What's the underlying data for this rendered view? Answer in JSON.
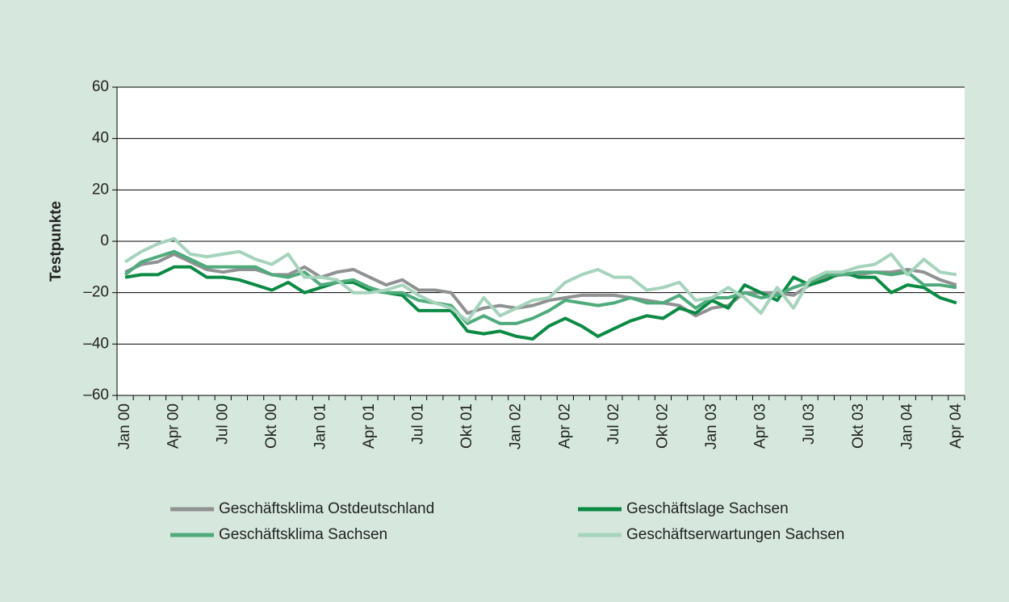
{
  "chart_data": {
    "type": "line",
    "y_label": "Testpunkte",
    "categories": [
      "Jan 00",
      null,
      null,
      "Apr 00",
      null,
      null,
      "Jul 00",
      null,
      null,
      "Okt 00",
      null,
      null,
      "Jan 01",
      null,
      null,
      "Apr 01",
      null,
      null,
      "Jul 01",
      null,
      null,
      "Okt 01",
      null,
      null,
      "Jan 02",
      null,
      null,
      "Apr 02",
      null,
      null,
      "Jul 02",
      null,
      null,
      "Okt 02",
      null,
      null,
      "Jan 03",
      null,
      null,
      "Apr 03",
      null,
      null,
      "Jul 03",
      null,
      null,
      "Okt 03",
      null,
      null,
      "Jan 04",
      null,
      null,
      "Apr 04"
    ],
    "series": [
      {
        "name": "Geschäftsklima Ostdeutschland",
        "color": "#8f9192",
        "values": [
          -12,
          -9,
          -8,
          -5,
          -8,
          -11,
          -12,
          -11,
          -11,
          -13,
          -13,
          -10,
          -14,
          -12,
          -11,
          -14,
          -17,
          -15,
          -19,
          -19,
          -20,
          -28,
          -26,
          -25,
          -26,
          -25,
          -23,
          -22,
          -21,
          -21,
          -21,
          -22,
          -23,
          -24,
          -25,
          -29,
          -26,
          -25,
          -20,
          -20,
          -20,
          -21,
          -17,
          -14,
          -13,
          -13,
          -12,
          -12,
          -11,
          -12,
          -15,
          -17
        ]
      },
      {
        "name": "Geschäftslage Sachsen",
        "color": "#0b8a44",
        "values": [
          -14,
          -13,
          -13,
          -10,
          -10,
          -14,
          -14,
          -15,
          -17,
          -19,
          -16,
          -20,
          -18,
          -16,
          -16,
          -19,
          -20,
          -21,
          -27,
          -27,
          -27,
          -35,
          -36,
          -35,
          -37,
          -38,
          -33,
          -30,
          -33,
          -37,
          -34,
          -31,
          -29,
          -30,
          -26,
          -28,
          -23,
          -26,
          -17,
          -20,
          -23,
          -14,
          -17,
          -15,
          -12,
          -14,
          -14,
          -20,
          -17,
          -18,
          -22,
          -24
        ]
      },
      {
        "name": "Geschäftsklima Sachsen",
        "color": "#4fab7c",
        "values": [
          -13,
          -8,
          -6,
          -4,
          -7,
          -10,
          -10,
          -10,
          -10,
          -13,
          -14,
          -12,
          -17,
          -16,
          -15,
          -18,
          -20,
          -20,
          -23,
          -24,
          -25,
          -32,
          -29,
          -32,
          -32,
          -30,
          -27,
          -23,
          -24,
          -25,
          -24,
          -22,
          -24,
          -24,
          -21,
          -26,
          -22,
          -22,
          -20,
          -22,
          -21,
          -18,
          -16,
          -13,
          -13,
          -12,
          -12,
          -13,
          -12,
          -17,
          -17,
          -18
        ]
      },
      {
        "name": "Geschäftserwartungen Sachsen",
        "color": "#a6d3bb",
        "values": [
          -8,
          -4,
          -1,
          1,
          -5,
          -6,
          -5,
          -4,
          -7,
          -9,
          -5,
          -14,
          -14,
          -15,
          -20,
          -20,
          -19,
          -17,
          -21,
          -24,
          -26,
          -31,
          -22,
          -29,
          -26,
          -23,
          -22,
          -16,
          -13,
          -11,
          -14,
          -14,
          -19,
          -18,
          -16,
          -23,
          -22,
          -18,
          -22,
          -28,
          -18,
          -26,
          -15,
          -12,
          -12,
          -10,
          -9,
          -5,
          -13,
          -7,
          -12,
          -13
        ]
      }
    ],
    "ylim": [
      -60,
      60
    ],
    "yticks": [
      {
        "value": -60,
        "label": "–60"
      },
      {
        "value": -40,
        "label": "–40"
      },
      {
        "value": -20,
        "label": "–20"
      },
      0,
      20,
      40,
      60
    ],
    "grid": true
  }
}
